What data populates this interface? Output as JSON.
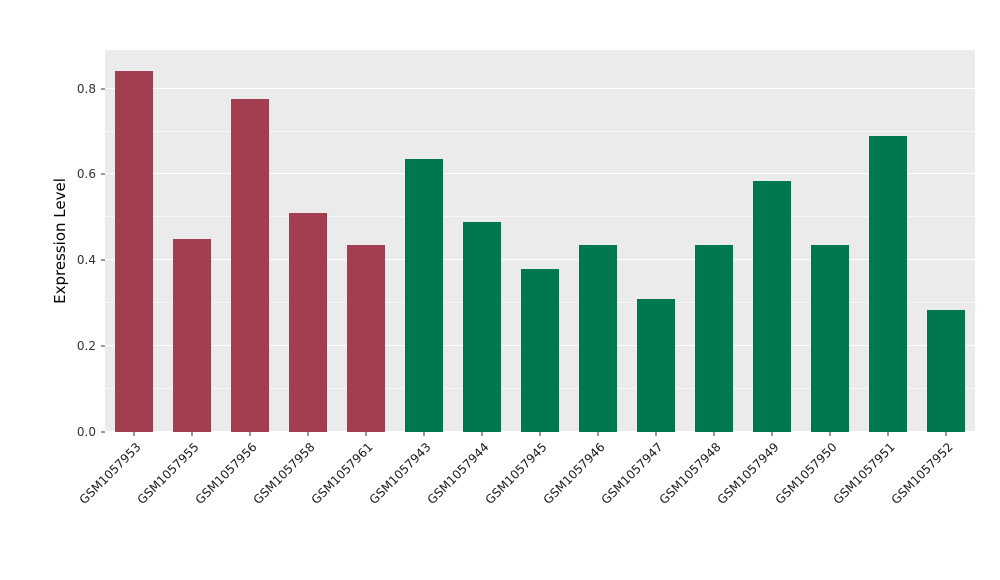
{
  "chart_data": {
    "type": "bar",
    "title": "",
    "xlabel": "",
    "ylabel": "Expression Level",
    "ylim": [
      0,
      0.89
    ],
    "yticks": [
      0.0,
      0.2,
      0.4,
      0.6,
      0.8
    ],
    "yticks_minor": [
      0.1,
      0.3,
      0.5,
      0.7
    ],
    "grid": true,
    "legend": false,
    "categories": [
      "GSM1057953",
      "GSM1057955",
      "GSM1057956",
      "GSM1057958",
      "GSM1057961",
      "GSM1057943",
      "GSM1057944",
      "GSM1057945",
      "GSM1057946",
      "GSM1057947",
      "GSM1057948",
      "GSM1057949",
      "GSM1057950",
      "GSM1057951",
      "GSM1057952"
    ],
    "values": [
      0.84,
      0.45,
      0.775,
      0.51,
      0.435,
      0.635,
      0.49,
      0.38,
      0.435,
      0.31,
      0.435,
      0.585,
      0.435,
      0.69,
      0.285
    ],
    "bar_colors": [
      "#A23E4F",
      "#A23E4F",
      "#A23E4F",
      "#A23E4F",
      "#A23E4F",
      "#00784F",
      "#00784F",
      "#00784F",
      "#00784F",
      "#00784F",
      "#00784F",
      "#00784F",
      "#00784F",
      "#00784F",
      "#00784F"
    ],
    "group_colors": {
      "red_group": "#A23E4F",
      "green_group": "#00784F"
    }
  },
  "style": {
    "panel_bg": "#EBEBEB",
    "grid_color": "#FFFFFF",
    "tick_color": "#333333",
    "label_color": "#1A1A1A",
    "background": "#FFFFFF"
  }
}
